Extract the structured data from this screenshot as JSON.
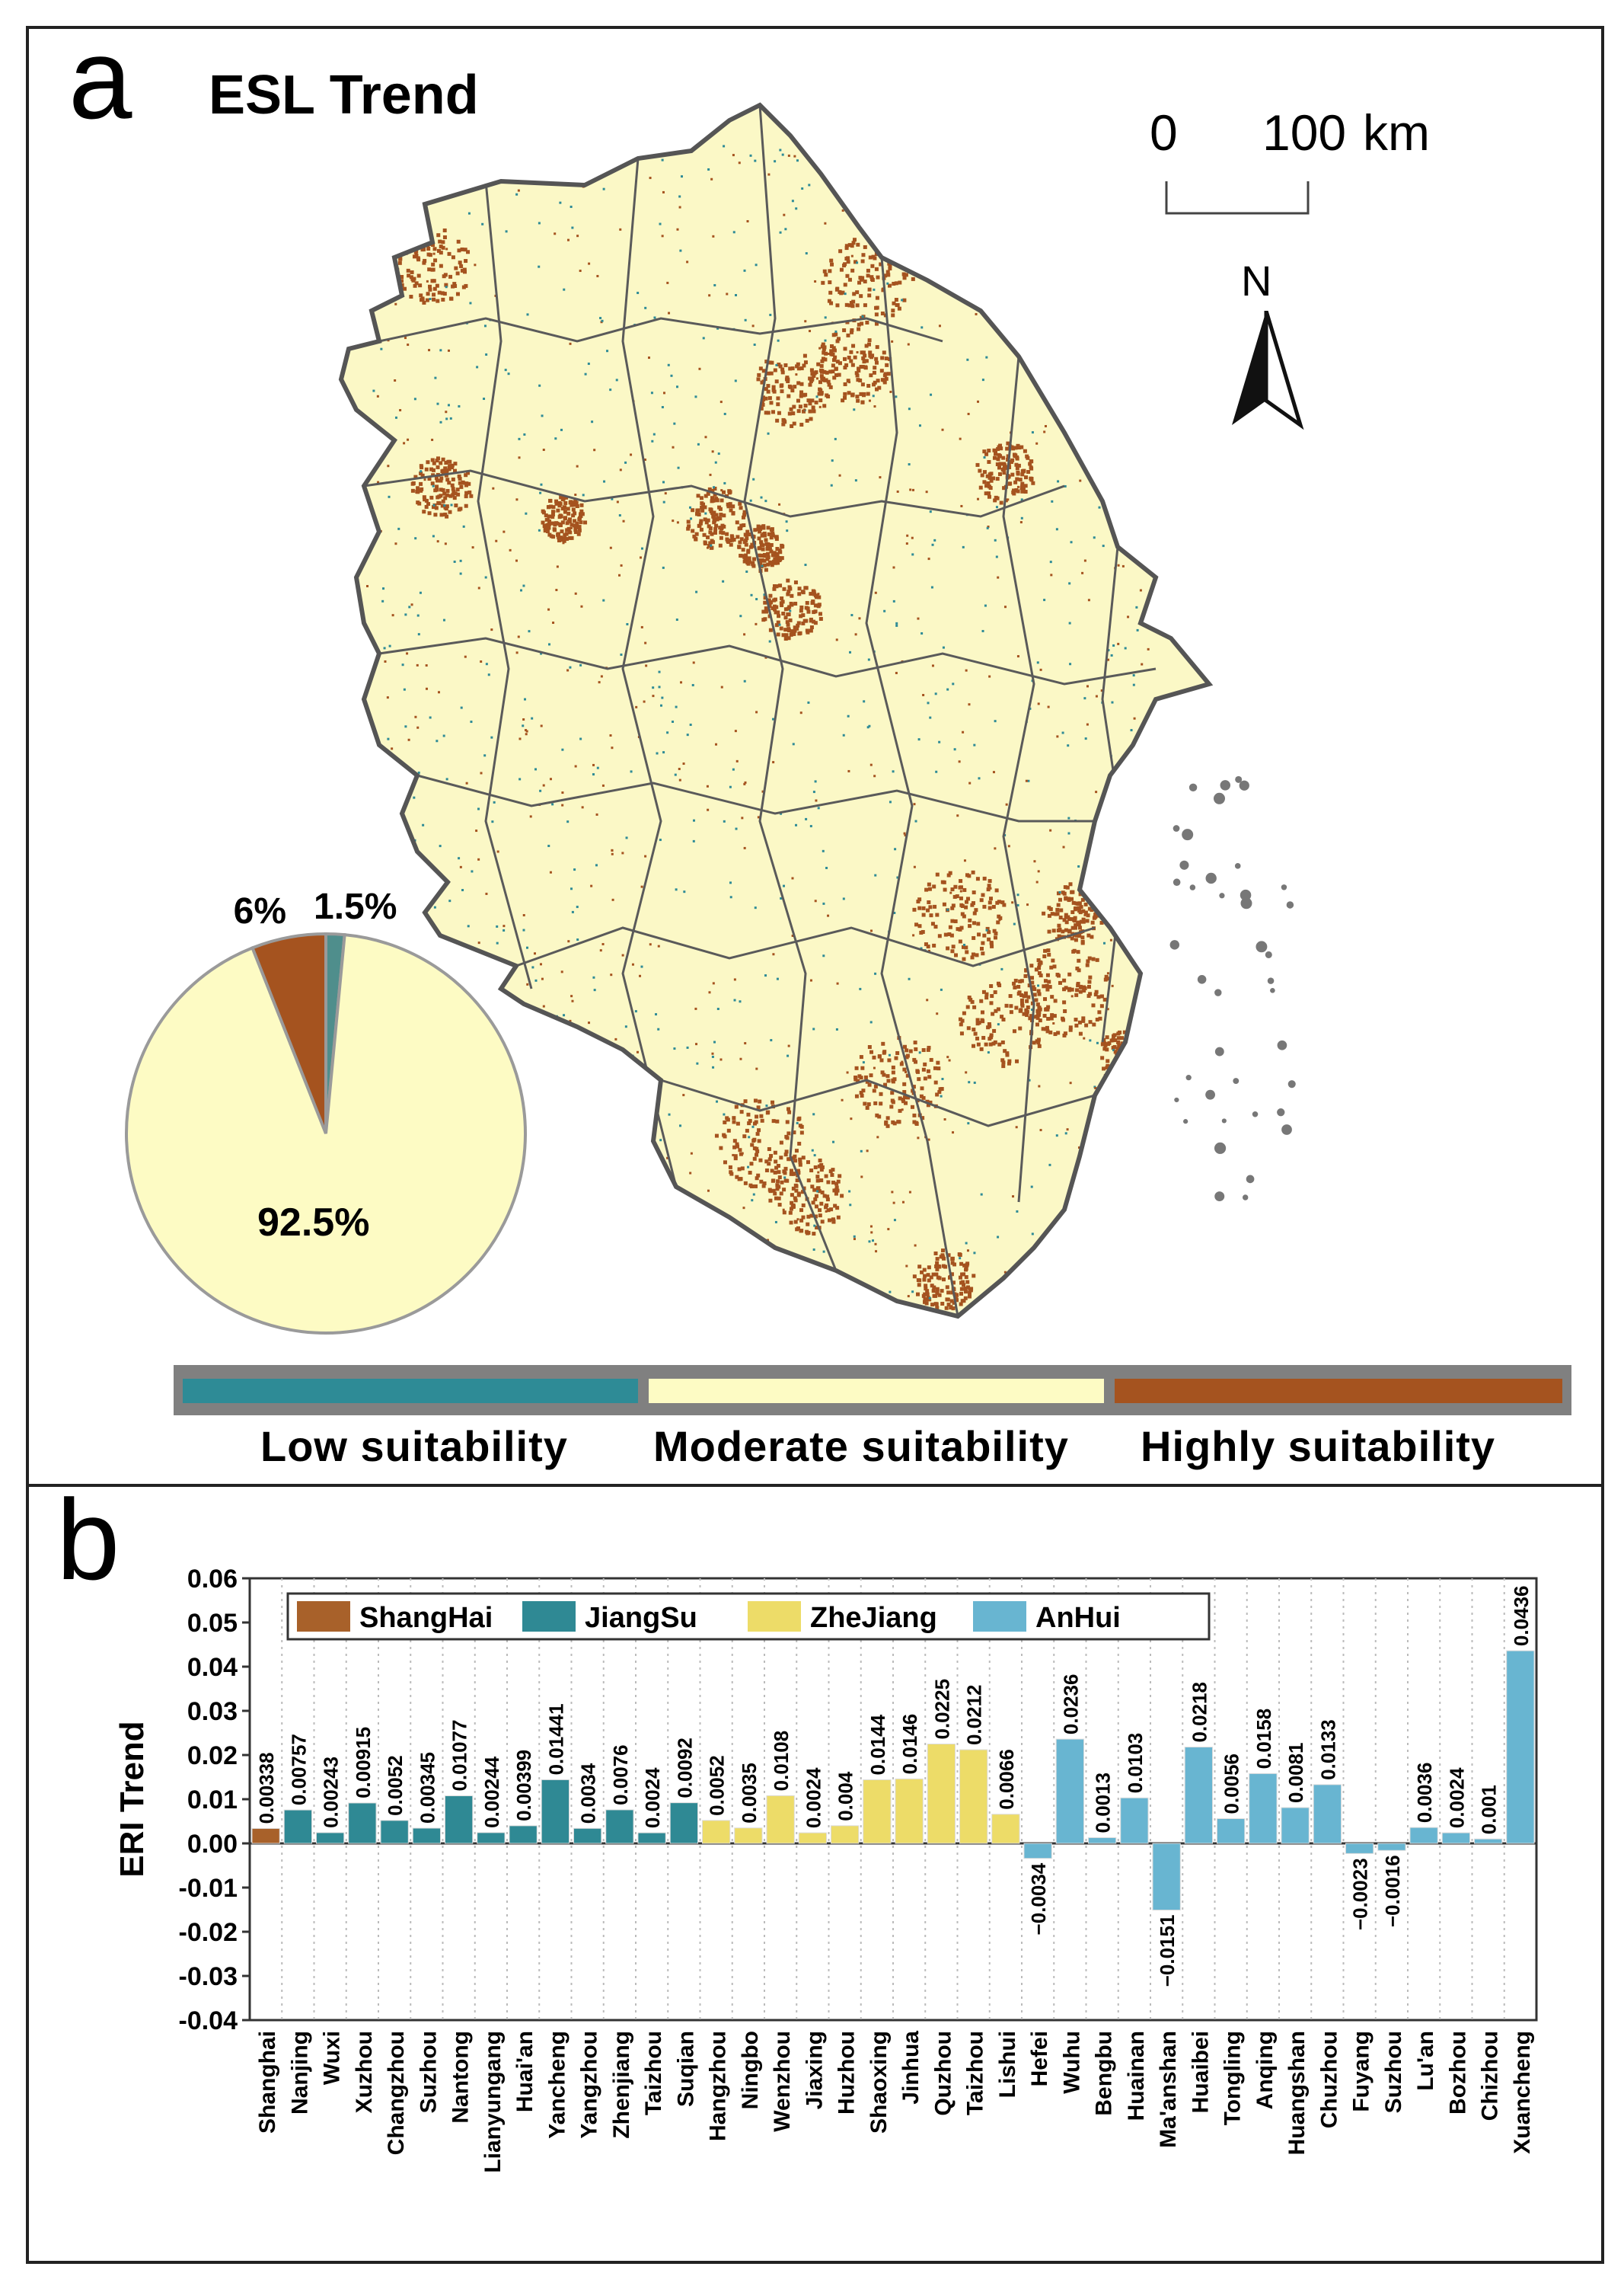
{
  "panel_a": {
    "letter": "a",
    "title": "ESL Trend",
    "scale_bar": {
      "start": "0",
      "end": "100",
      "unit": "km"
    },
    "north_label": "N",
    "pie": {
      "slices": [
        {
          "label": "92.5%",
          "value": 92.5,
          "color": "#fdfbc4",
          "category": "Moderate suitability"
        },
        {
          "label": "6%",
          "value": 6.0,
          "color": "#a5531f",
          "category": "Highly suitability"
        },
        {
          "label": "1.5%",
          "value": 1.5,
          "color": "#4f8e8c",
          "category": "Low suitability"
        }
      ]
    },
    "legend": [
      {
        "label": "Low suitability",
        "color": "#2e8b96"
      },
      {
        "label": "Moderate suitability",
        "color": "#fdfbc4"
      },
      {
        "label": "Highly suitability",
        "color": "#a5531f"
      }
    ],
    "colors": {
      "map_fill": "#fbf8c6",
      "boundary": "#555555",
      "high": "#a5531f",
      "low": "#2e8b96"
    }
  },
  "panel_b": {
    "letter": "b"
  },
  "chart_data": {
    "type": "bar",
    "ylabel": "ERI Trend",
    "xlabel": "",
    "ylim": [
      -0.04,
      0.06
    ],
    "yticks": [
      "0.06",
      "0.05",
      "0.04",
      "0.03",
      "0.02",
      "0.01",
      "0.00",
      "-0.01",
      "-0.02",
      "-0.03",
      "-0.04"
    ],
    "ytick_values": [
      0.06,
      0.05,
      0.04,
      0.03,
      0.02,
      0.01,
      0.0,
      -0.01,
      -0.02,
      -0.03,
      -0.04
    ],
    "legend": [
      {
        "name": "ShangHai",
        "color": "#a8612a"
      },
      {
        "name": "JiangSu",
        "color": "#2f8994"
      },
      {
        "name": "ZheJiang",
        "color": "#eddc68"
      },
      {
        "name": "AnHui",
        "color": "#68b5d1"
      }
    ],
    "legend_position": "top-left",
    "grid": "vertical dotted",
    "categories": [
      "Shanghai",
      "Nanjing",
      "Wuxi",
      "Xuzhou",
      "Changzhou",
      "Suzhou",
      "Nantong",
      "Lianyungang",
      "Huai'an",
      "Yancheng",
      "Yangzhou",
      "Zhenjiang",
      "Taizhou",
      "Suqian",
      "Hangzhou",
      "Ningbo",
      "Wenzhou",
      "Jiaxing",
      "Huzhou",
      "Shaoxing",
      "Jinhua",
      "Quzhou",
      "Taizhou",
      "Lishui",
      "Hefei",
      "Wuhu",
      "Bengbu",
      "Huainan",
      "Ma'anshan",
      "Huaibei",
      "Tongling",
      "Anqing",
      "Huangshan",
      "Chuzhou",
      "Fuyang",
      "Suzhou",
      "Lu'an",
      "Bozhou",
      "Chizhou",
      "Xuancheng"
    ],
    "values": [
      0.00338,
      0.00757,
      0.00243,
      0.00915,
      0.0052,
      0.00345,
      0.01077,
      0.00244,
      0.00399,
      0.01441,
      0.0034,
      0.0076,
      0.0024,
      0.0092,
      0.0052,
      0.0035,
      0.0108,
      0.0024,
      0.004,
      0.0144,
      0.0146,
      0.0225,
      0.0212,
      0.0066,
      -0.0034,
      0.0236,
      0.0013,
      0.0103,
      -0.0151,
      0.0218,
      0.0056,
      0.0158,
      0.0081,
      0.0133,
      -0.0023,
      -0.0016,
      0.0036,
      0.0024,
      0.001,
      0.0436
    ],
    "value_labels": [
      "0.00338",
      "0.00757",
      "0.00243",
      "0.00915",
      "0.0052",
      "0.00345",
      "0.01077",
      "0.00244",
      "0.00399",
      "0.01441",
      "0.0034",
      "0.0076",
      "0.0024",
      "0.0092",
      "0.0052",
      "0.0035",
      "0.0108",
      "0.0024",
      "0.004",
      "0.0144",
      "0.0146",
      "0.0225",
      "0.0212",
      "0.0066",
      "−0.0034",
      "0.0236",
      "0.0013",
      "0.0103",
      "−0.0151",
      "0.0218",
      "0.0056",
      "0.0158",
      "0.0081",
      "0.0133",
      "−0.0023",
      "−0.0016",
      "0.0036",
      "0.0024",
      "0.001",
      "0.0436"
    ],
    "groups": [
      0,
      1,
      1,
      1,
      1,
      1,
      1,
      1,
      1,
      1,
      1,
      1,
      1,
      1,
      2,
      2,
      2,
      2,
      2,
      2,
      2,
      2,
      2,
      2,
      3,
      3,
      3,
      3,
      3,
      3,
      3,
      3,
      3,
      3,
      3,
      3,
      3,
      3,
      3,
      3
    ]
  }
}
